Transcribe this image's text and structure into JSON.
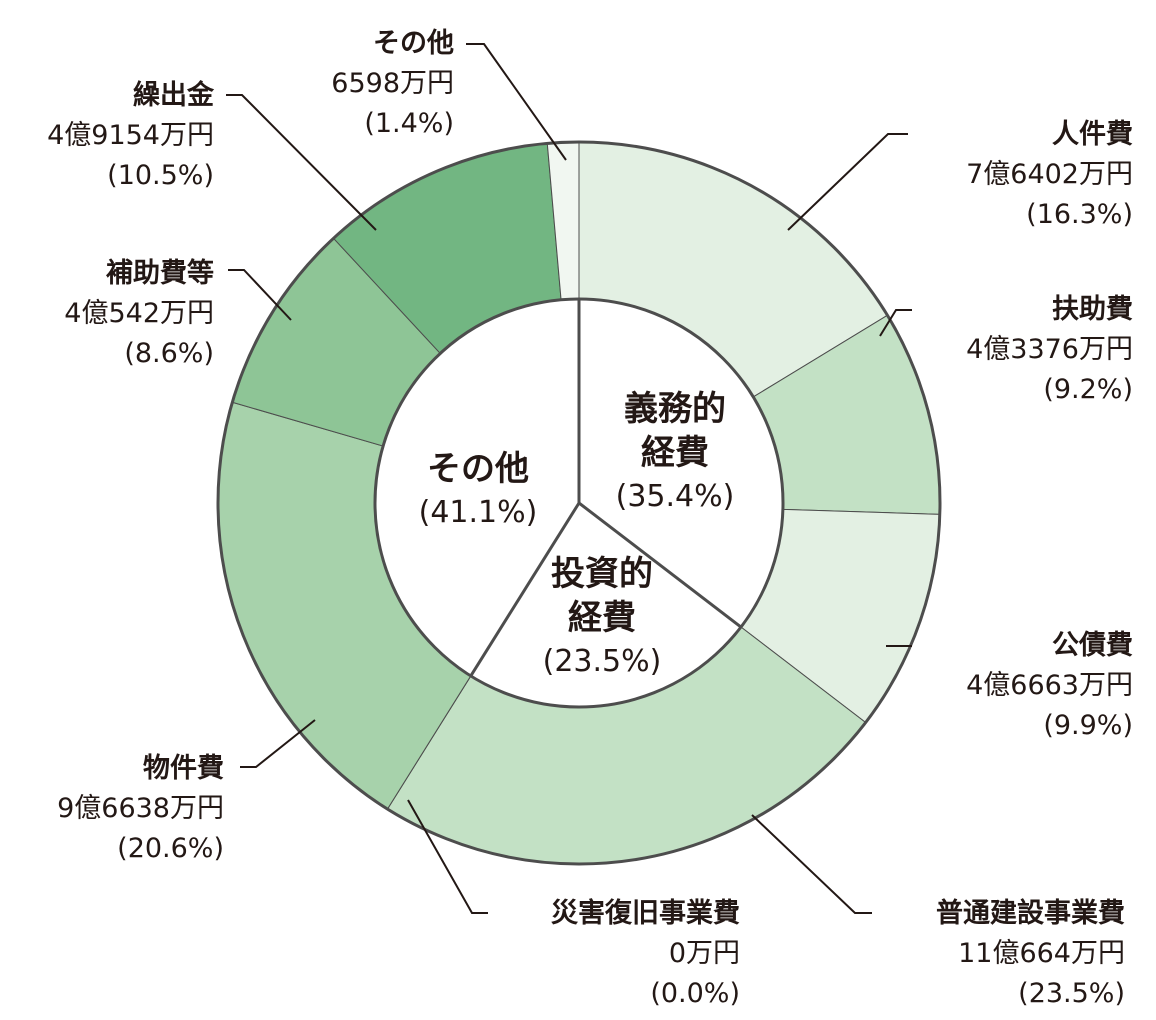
{
  "chart_data": {
    "type": "pie",
    "donut": true,
    "outer_series": [
      {
        "name": "人件費",
        "amount": "7億6402万円",
        "pct_label": "(16.3%)",
        "value": 16.3,
        "color": "#e3f0e3"
      },
      {
        "name": "扶助費",
        "amount": "4億3376万円",
        "pct_label": "(9.2%)",
        "value": 9.2,
        "color": "#c3e1c5"
      },
      {
        "name": "公債費",
        "amount": "4億6663万円",
        "pct_label": "(9.9%)",
        "value": 9.9,
        "color": "#e3f0e3"
      },
      {
        "name": "普通建設事業費",
        "amount": "11億664万円",
        "pct_label": "(23.5%)",
        "value": 23.5,
        "color": "#c3e1c5"
      },
      {
        "name": "災害復旧事業費",
        "amount": "0万円",
        "pct_label": "(0.0%)",
        "value": 0.0,
        "color": "#c3e1c5"
      },
      {
        "name": "物件費",
        "amount": "9億6638万円",
        "pct_label": "(20.6%)",
        "value": 20.6,
        "color": "#a7d2ab"
      },
      {
        "name": "補助費等",
        "amount": "4億542万円",
        "pct_label": "(8.6%)",
        "value": 8.6,
        "color": "#8ec596"
      },
      {
        "name": "繰出金",
        "amount": "4億9154万円",
        "pct_label": "(10.5%)",
        "value": 10.5,
        "color": "#72b682"
      },
      {
        "name": "その他",
        "amount": "6598万円",
        "pct_label": "(1.4%)",
        "value": 1.4,
        "color": "#f1f7f1"
      }
    ],
    "inner_groups": [
      {
        "name": "義務的経費",
        "name_lines": [
          "義務的",
          "経費"
        ],
        "pct_label": "(35.4%)",
        "value": 35.4
      },
      {
        "name": "投資的経費",
        "name_lines": [
          "投資的",
          "経費"
        ],
        "pct_label": "(23.5%)",
        "value": 23.5
      },
      {
        "name": "その他",
        "name_lines": [
          "その他"
        ],
        "pct_label": "(41.1%)",
        "value": 41.1
      }
    ],
    "line_color": "#4d4d4d"
  }
}
